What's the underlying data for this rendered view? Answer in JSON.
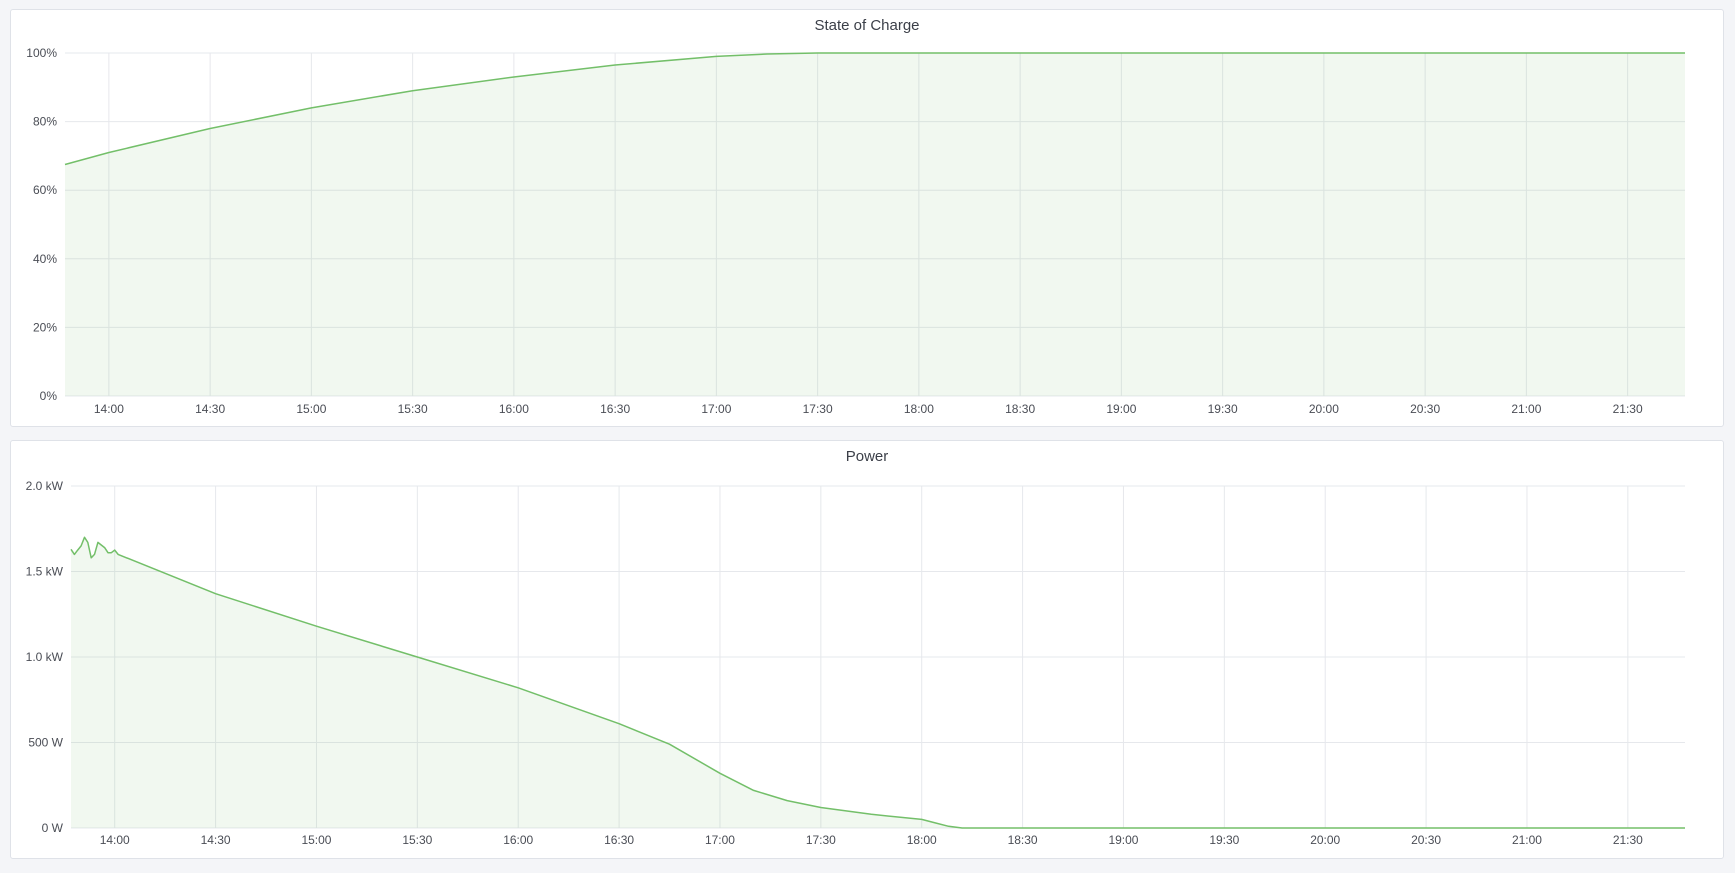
{
  "colors": {
    "line": "#73bf69",
    "fill": "rgba(115,191,105,0.10)",
    "grid": "#e6e8ec"
  },
  "chart_data": [
    {
      "type": "area",
      "title": "State of Charge",
      "xlim": [
        "13:47",
        "21:47"
      ],
      "ylim": [
        0,
        100
      ],
      "grid": true,
      "xticks": [
        "14:00",
        "14:30",
        "15:00",
        "15:30",
        "16:00",
        "16:30",
        "17:00",
        "17:30",
        "18:00",
        "18:30",
        "19:00",
        "19:30",
        "20:00",
        "20:30",
        "21:00",
        "21:30"
      ],
      "yticks": [
        {
          "value": 0,
          "label": "0%"
        },
        {
          "value": 20,
          "label": "20%"
        },
        {
          "value": 40,
          "label": "40%"
        },
        {
          "value": 60,
          "label": "60%"
        },
        {
          "value": 80,
          "label": "80%"
        },
        {
          "value": 100,
          "label": "100%"
        }
      ],
      "series": [
        {
          "x": [
            "13:47",
            "14:00",
            "14:30",
            "15:00",
            "15:30",
            "16:00",
            "16:30",
            "17:00",
            "17:15",
            "17:30",
            "18:00",
            "21:47"
          ],
          "y": [
            67.5,
            71,
            78,
            84,
            89,
            93,
            96.5,
            99,
            99.7,
            100,
            100,
            100
          ]
        }
      ]
    },
    {
      "type": "area",
      "title": "Power",
      "xlim": [
        "13:47",
        "21:47"
      ],
      "ylim": [
        0,
        2000
      ],
      "grid": true,
      "xticks": [
        "14:00",
        "14:30",
        "15:00",
        "15:30",
        "16:00",
        "16:30",
        "17:00",
        "17:30",
        "18:00",
        "18:30",
        "19:00",
        "19:30",
        "20:00",
        "20:30",
        "21:00",
        "21:30"
      ],
      "yticks": [
        {
          "value": 0,
          "label": "0 W"
        },
        {
          "value": 500,
          "label": "500 W"
        },
        {
          "value": 1000,
          "label": "1.0 kW"
        },
        {
          "value": 1500,
          "label": "1.5 kW"
        },
        {
          "value": 2000,
          "label": "2.0 kW"
        }
      ],
      "series": [
        {
          "x": [
            "13:47",
            "13:48",
            "13:49",
            "13:50",
            "13:51",
            "13:52",
            "13:53",
            "13:54",
            "13:55",
            "13:57",
            "13:58",
            "13:59",
            "14:00",
            "14:01",
            "14:30",
            "15:00",
            "15:30",
            "16:00",
            "16:30",
            "16:45",
            "17:00",
            "17:10",
            "17:20",
            "17:30",
            "17:45",
            "18:00",
            "18:04",
            "18:08",
            "18:12",
            "21:47"
          ],
          "y": [
            1630,
            1600,
            1625,
            1650,
            1700,
            1670,
            1580,
            1600,
            1670,
            1640,
            1610,
            1610,
            1625,
            1600,
            1370,
            1180,
            1000,
            820,
            610,
            490,
            320,
            220,
            160,
            120,
            80,
            50,
            30,
            10,
            0,
            0
          ]
        }
      ]
    }
  ]
}
